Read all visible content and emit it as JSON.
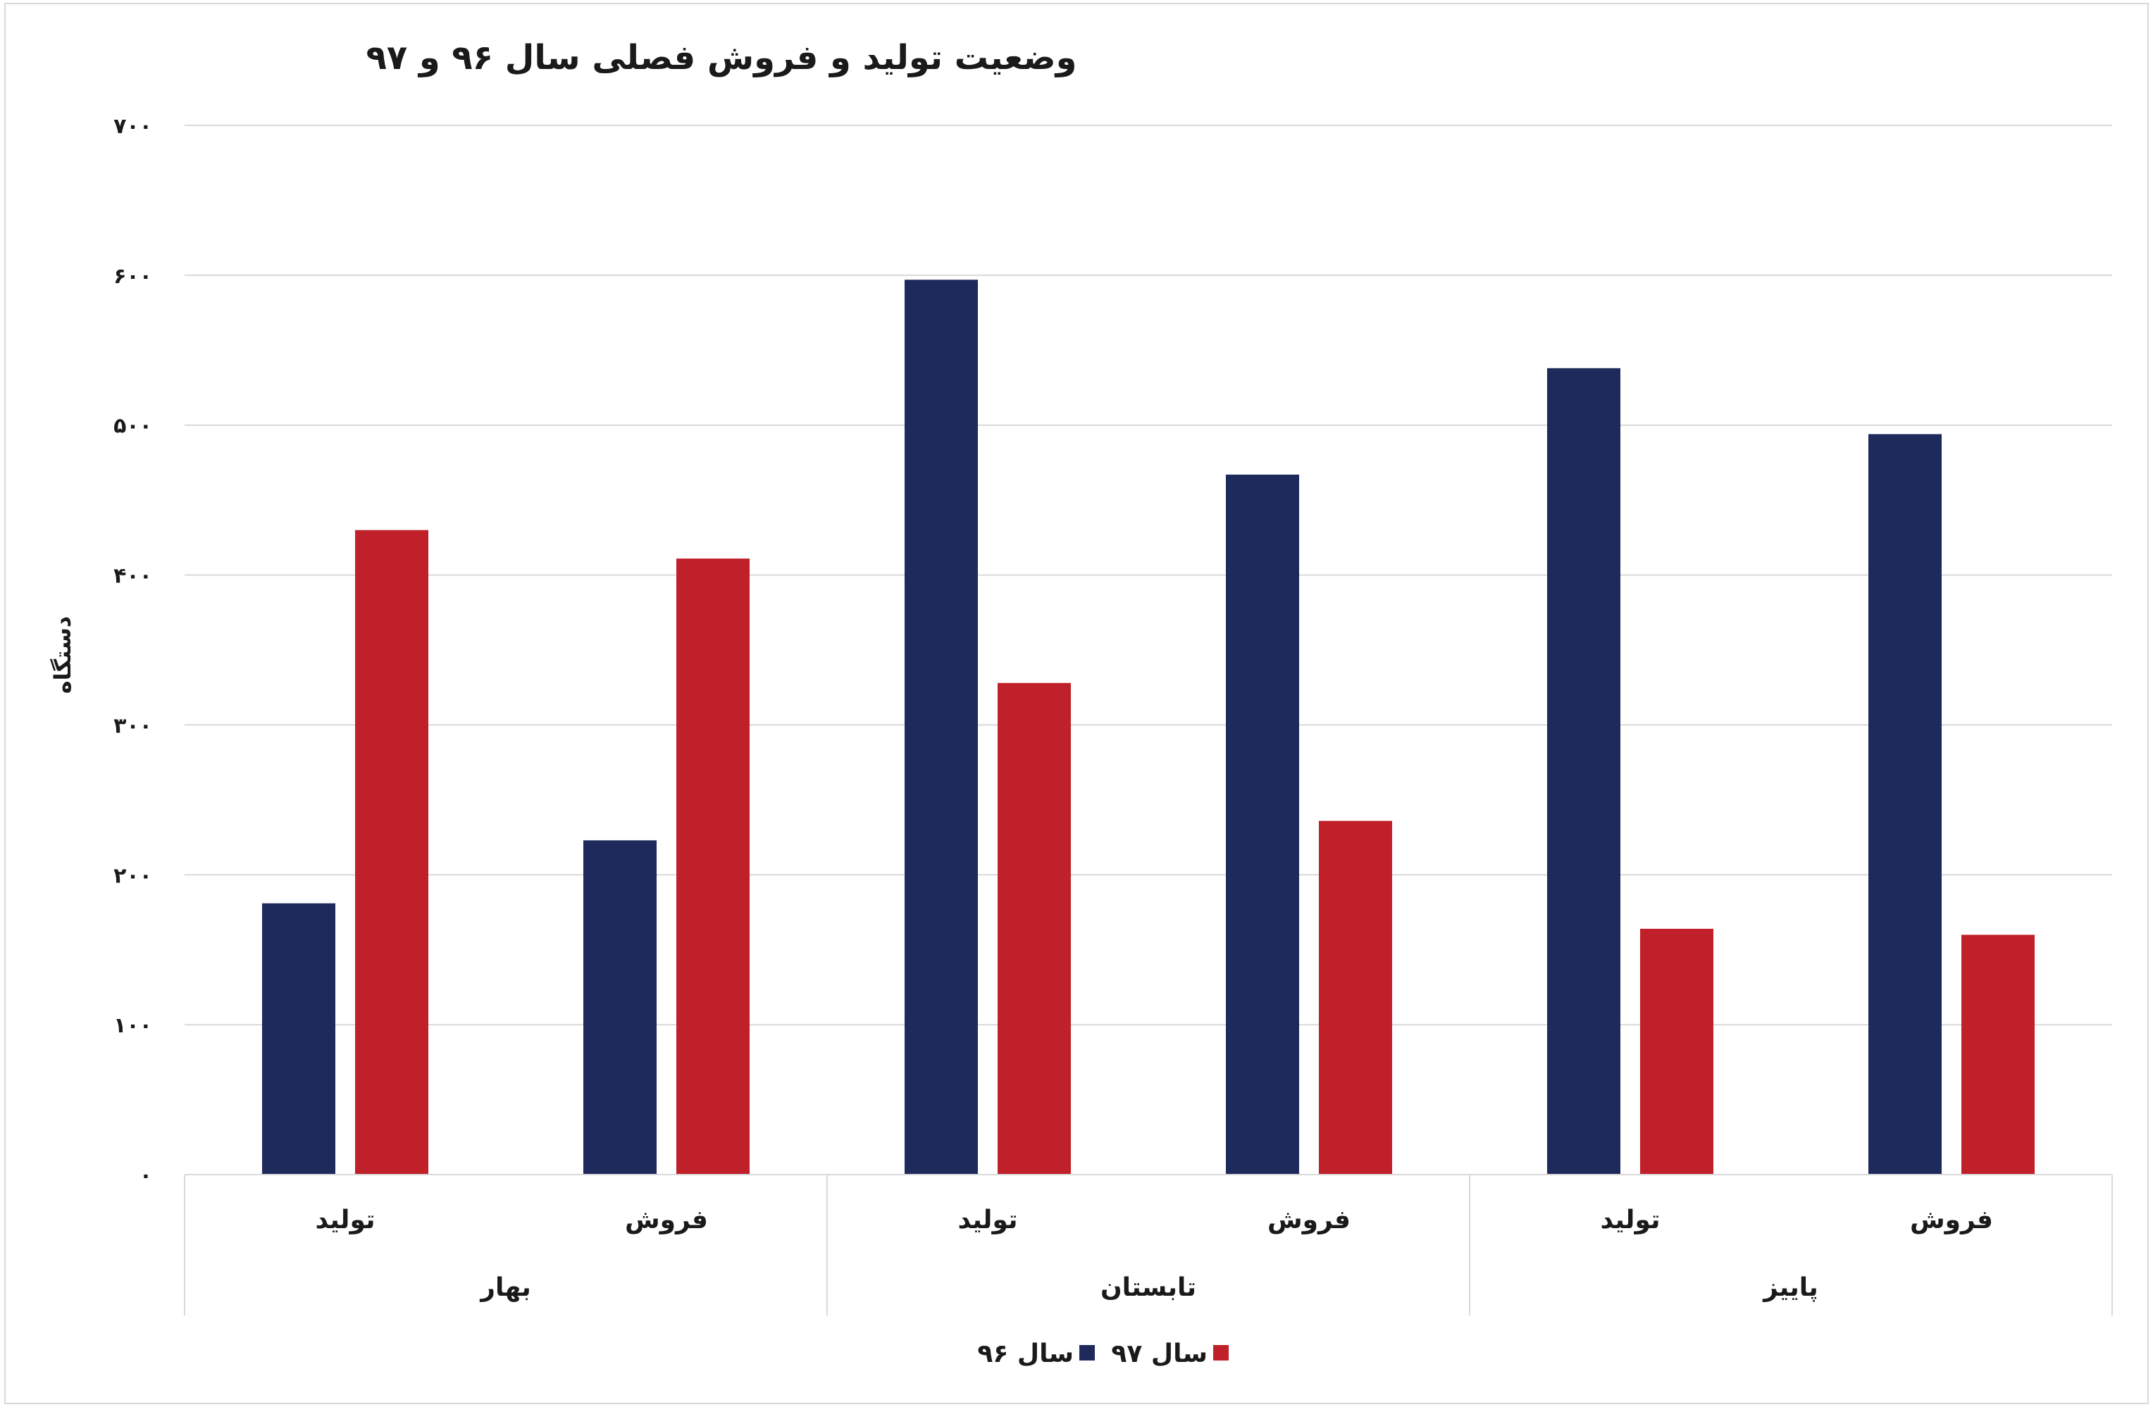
{
  "chart_data": {
    "type": "bar",
    "title": "وضعیت تولید و فروش فصلی سال ۹۶ و ۹۷",
    "ylabel": "دستگاه",
    "xlabel": "",
    "ylim": [
      0,
      700
    ],
    "y_ticks": [
      0,
      100,
      200,
      300,
      400,
      500,
      600,
      700
    ],
    "y_tick_labels": [
      "۰",
      "۱۰۰",
      "۲۰۰",
      "۳۰۰",
      "۴۰۰",
      "۵۰۰",
      "۶۰۰",
      "۷۰۰"
    ],
    "grid": true,
    "legend_position": "bottom",
    "groups": [
      {
        "label": "بهار",
        "categories": [
          "تولید",
          "فروش"
        ]
      },
      {
        "label": "تابستان",
        "categories": [
          "تولید",
          "فروش"
        ]
      },
      {
        "label": "پاییز",
        "categories": [
          "تولید",
          "فروش"
        ]
      }
    ],
    "series": [
      {
        "name": "سال ۹۶",
        "color": "#1f2a5c",
        "values": [
          181,
          223,
          597,
          467,
          538,
          494
        ]
      },
      {
        "name": "سال ۹۷",
        "color": "#c0202a",
        "values": [
          430,
          411,
          328,
          236,
          164,
          160
        ]
      }
    ]
  }
}
